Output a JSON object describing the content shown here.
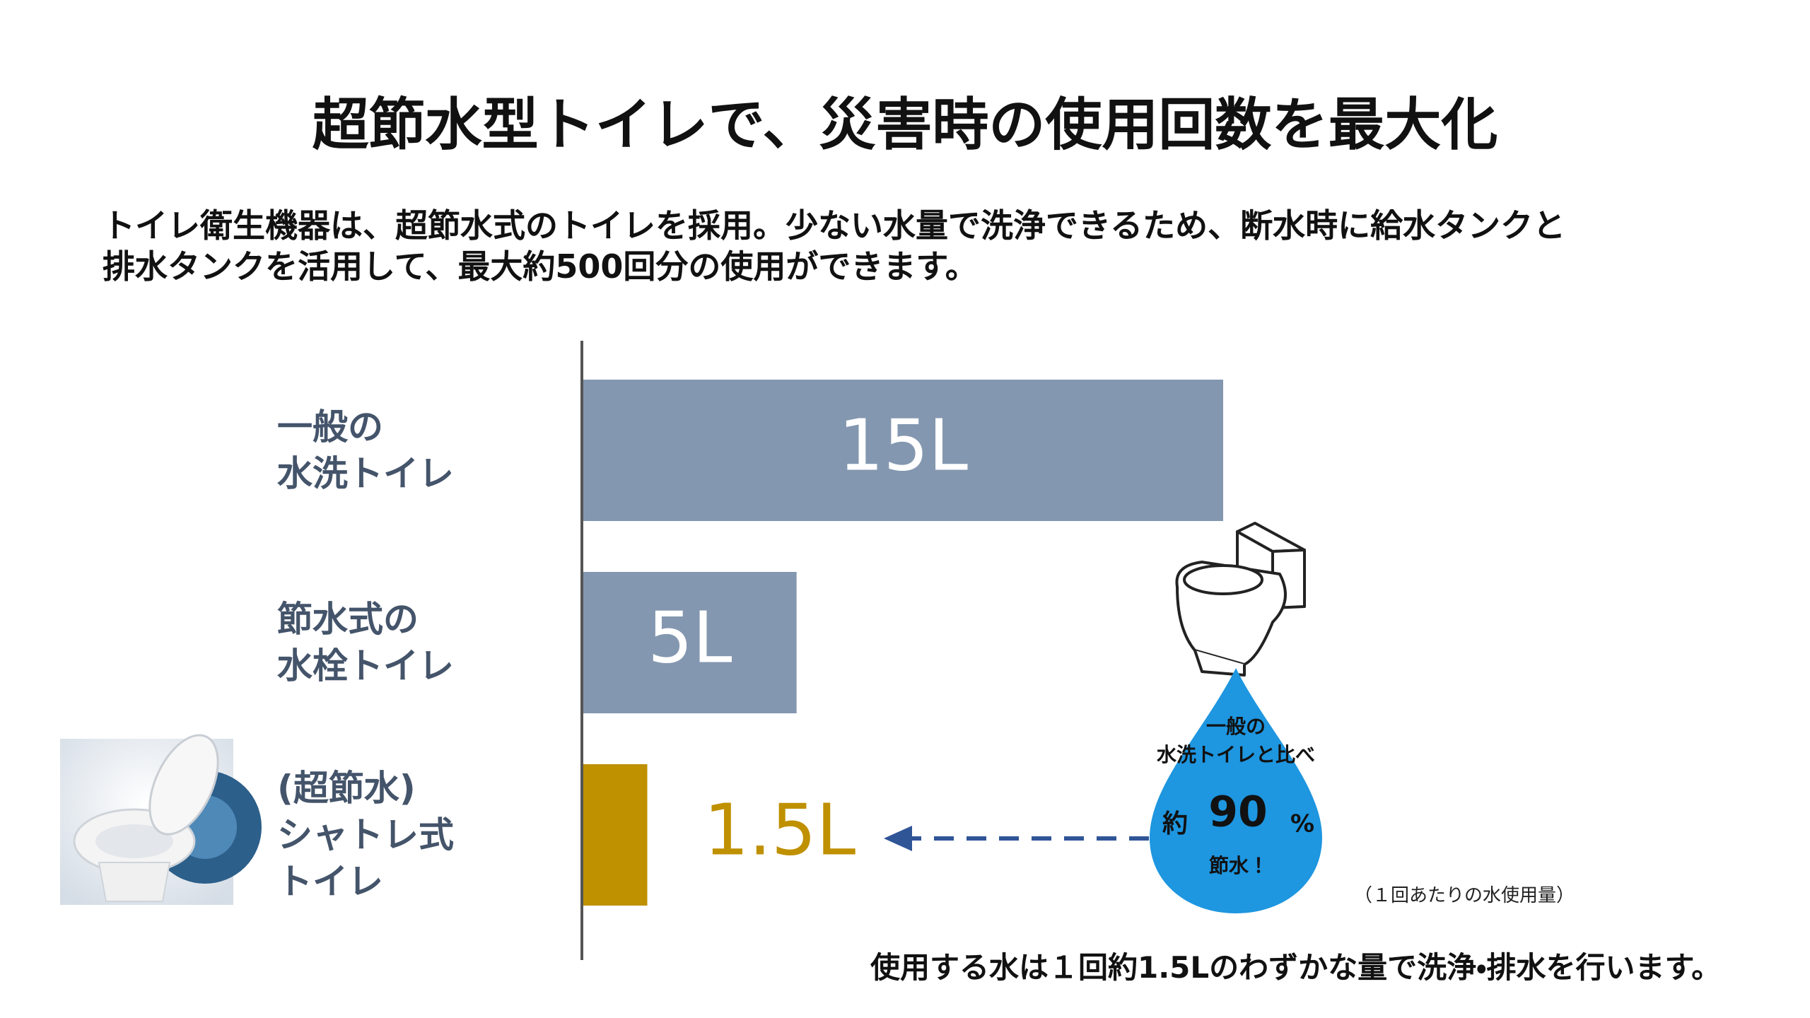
{
  "chart_data": {
    "type": "hbar",
    "title": "超節水型トイレで、災害時の使用回数を最大化",
    "subtitle": "トイレ衛生機器は、超節水式のトイレを採用。少ない水量で洗浄できるため、断水時に給水タンクと\n排水タンクを活用して、最大約500回分の使用ができます。",
    "categories": [
      "一般の\n水洗トイレ",
      "節水式の\n水栓トイレ",
      "(超節水)\nシャトレ式\nトイレ"
    ],
    "values": [
      15,
      5,
      1.5
    ],
    "value_labels": [
      "15L",
      "5L",
      "1.5L"
    ],
    "colors": [
      "#8497b0",
      "#8497b0",
      "#bf9000"
    ],
    "annotations": {
      "drop_heading": "一般の\n水洗トイレと比べ",
      "drop_prefix": "約",
      "drop_number": "90",
      "drop_unit": "%",
      "drop_footer": "節水！",
      "note": "（１回あたりの水使用量）",
      "footer": "使用する水は１回約1.5Lのわずかな量で洗浄・排水を行います。"
    }
  }
}
